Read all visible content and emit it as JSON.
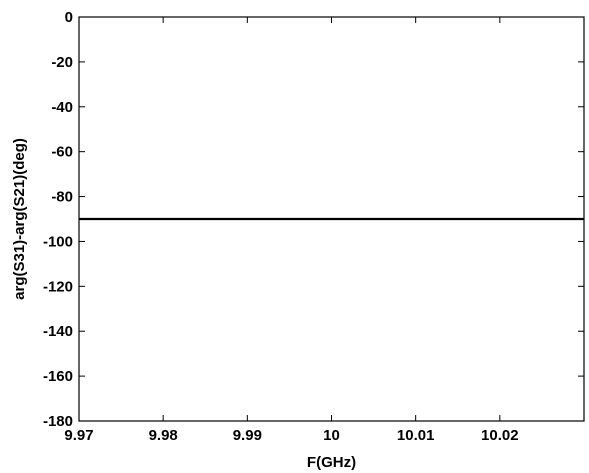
{
  "chart_data": {
    "type": "line",
    "title": "",
    "xlabel": "F(GHz)",
    "ylabel": "arg(S31)-arg(S21)(deg)",
    "xlim": [
      9.97,
      10.03
    ],
    "ylim": [
      -180,
      0
    ],
    "x_ticks": [
      9.97,
      9.98,
      9.99,
      10.0,
      10.01,
      10.02
    ],
    "x_tick_labels": [
      "9.97",
      "9.98",
      "9.99",
      "10",
      "10.01",
      "10.02"
    ],
    "y_ticks": [
      0,
      -20,
      -40,
      -60,
      -80,
      -100,
      -120,
      -140,
      -160,
      -180
    ],
    "y_tick_labels": [
      "0",
      "-20",
      "-40",
      "-60",
      "-80",
      "-100",
      "-120",
      "-140",
      "-160",
      "-180"
    ],
    "grid": false,
    "legend": "none",
    "series": [
      {
        "color": "#000000",
        "x": [
          9.97,
          9.98,
          9.99,
          10.0,
          10.01,
          10.02,
          10.03
        ],
        "y": [
          -90,
          -90,
          -90,
          -90,
          -90,
          -90,
          -90
        ]
      }
    ]
  }
}
